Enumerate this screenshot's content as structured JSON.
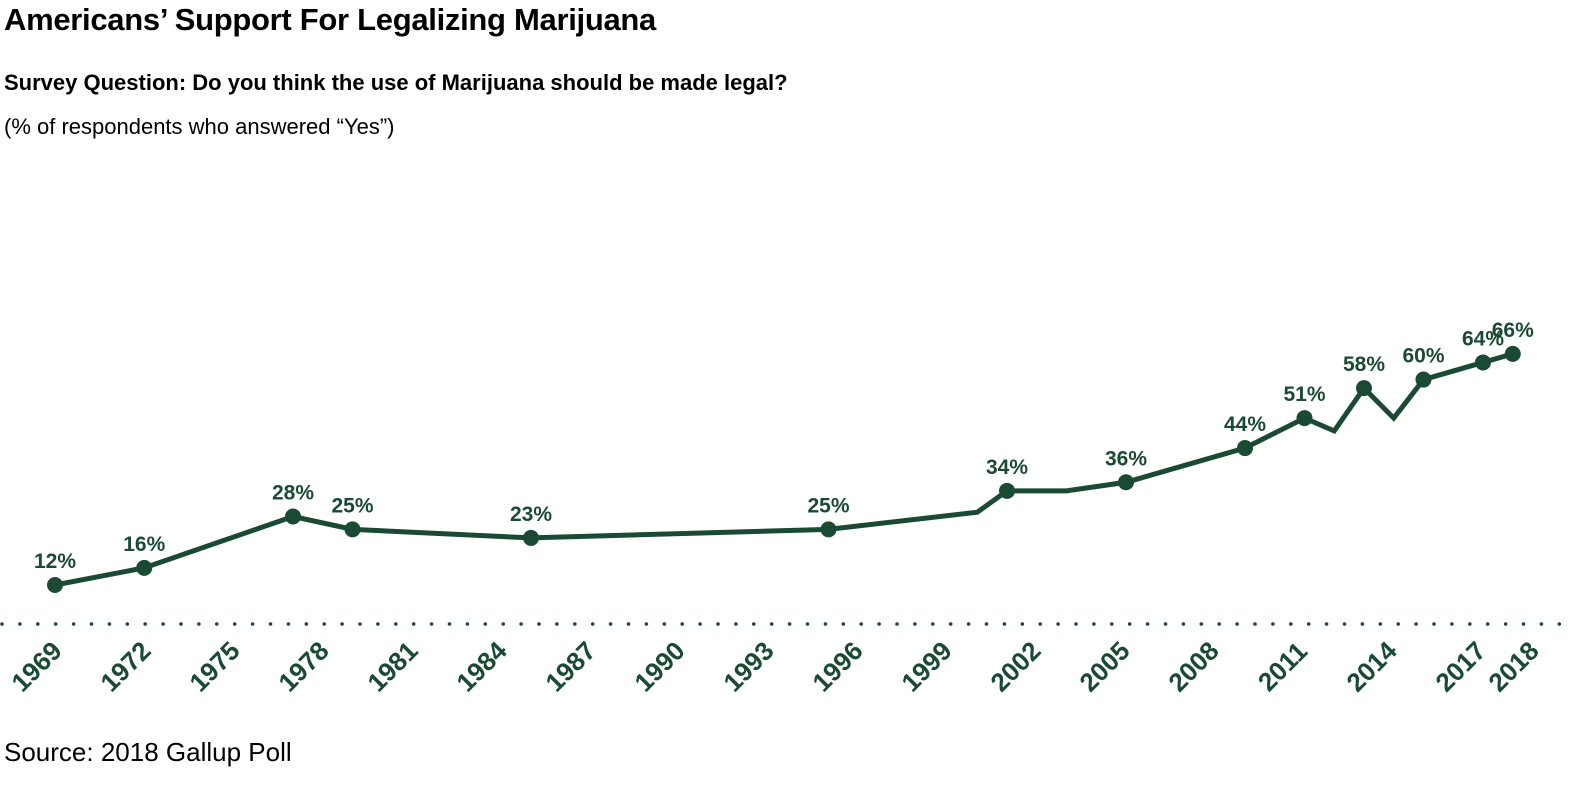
{
  "chart_data": {
    "type": "line",
    "title": "Americans’ Support For Legalizing Marijuana",
    "subtitle": "Survey Question: Do you think the use of Marijuana should be made legal?",
    "note": "(% of respondents who answered “Yes”)",
    "source": "Source: 2018 Gallup Poll",
    "xlabel": "",
    "ylabel": "",
    "x_tick_labels": [
      "1969",
      "1972",
      "1975",
      "1978",
      "1981",
      "1984",
      "1987",
      "1990",
      "1993",
      "1996",
      "1999",
      "2002",
      "2005",
      "2008",
      "2011",
      "2014",
      "2017",
      "2018"
    ],
    "grid": false,
    "line_color": "#1a4a33",
    "series": [
      {
        "points": [
          {
            "year": 1969,
            "value": 12,
            "label": "12%"
          },
          {
            "year": 1972,
            "value": 16,
            "label": "16%"
          },
          {
            "year": 1977,
            "value": 28,
            "label": "28%"
          },
          {
            "year": 1979,
            "value": 25,
            "label": "25%"
          },
          {
            "year": 1985,
            "value": 23,
            "label": "23%"
          },
          {
            "year": 1995,
            "value": 25,
            "label": "25%"
          },
          {
            "year": 2000,
            "value": 29,
            "label": null
          },
          {
            "year": 2001,
            "value": 34,
            "label": "34%"
          },
          {
            "year": 2003,
            "value": 34,
            "label": null
          },
          {
            "year": 2005,
            "value": 36,
            "label": "36%"
          },
          {
            "year": 2009,
            "value": 44,
            "label": "44%"
          },
          {
            "year": 2011,
            "value": 51,
            "label": "51%"
          },
          {
            "year": 2012,
            "value": 48,
            "label": null
          },
          {
            "year": 2013,
            "value": 58,
            "label": "58%"
          },
          {
            "year": 2014,
            "value": 51,
            "label": null
          },
          {
            "year": 2015,
            "value": 60,
            "label": "60%"
          },
          {
            "year": 2017,
            "value": 64,
            "label": "64%"
          },
          {
            "year": 2018,
            "value": 66,
            "label": "66%"
          }
        ]
      }
    ]
  }
}
